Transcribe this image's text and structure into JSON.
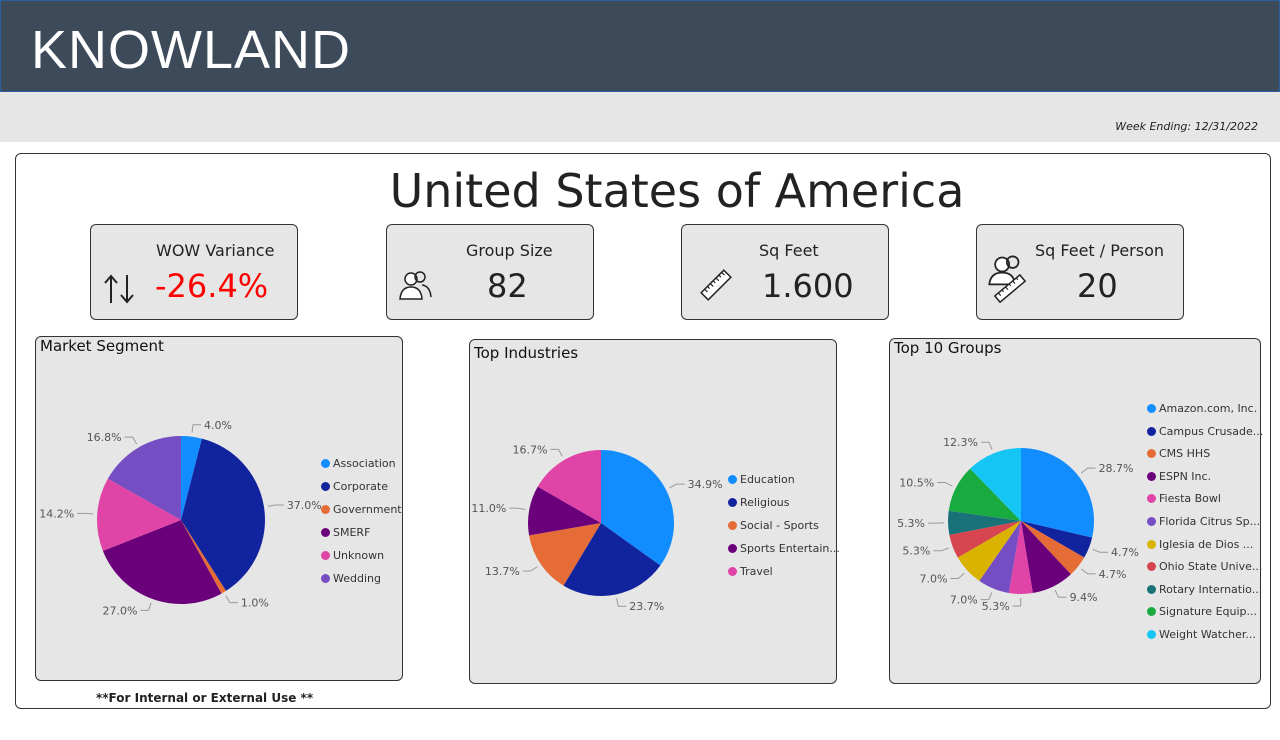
{
  "header": {
    "brand": "KNOWLAND",
    "week_ending": "Week Ending: 12/31/2022"
  },
  "page_title": "United States of America",
  "kpis": {
    "wow": {
      "label": "WOW Variance",
      "value": "-26.4%",
      "icon": "up-down-arrows-icon",
      "color": "#ff0000"
    },
    "group_size": {
      "label": "Group Size",
      "value": "82",
      "icon": "people-icon"
    },
    "sq_feet": {
      "label": "Sq Feet",
      "value": "1.600",
      "icon": "ruler-icon"
    },
    "sq_per_person": {
      "label": "Sq Feet / Person",
      "value": "20",
      "icon": "person-ruler-icon"
    }
  },
  "footer": "**For Internal or External Use **",
  "chart_data": [
    {
      "type": "pie",
      "title": "Market Segment",
      "categories": [
        "Association",
        "Corporate",
        "Government",
        "SMERF",
        "Unknown",
        "Wedding"
      ],
      "values": [
        4.0,
        37.0,
        1.0,
        27.0,
        14.2,
        16.8
      ],
      "labels": [
        "4.0%",
        "37.0%",
        "1.0%",
        "27.0%",
        "14.2%",
        "16.8%"
      ],
      "colors": [
        "#118dff",
        "#12239e",
        "#e66c37",
        "#6b007b",
        "#e044a7",
        "#744ec2"
      ],
      "legend": "right"
    },
    {
      "type": "pie",
      "title": "Top Industries",
      "categories": [
        "Education",
        "Religious",
        "Social - Sports",
        "Sports Entertain...",
        "Travel"
      ],
      "values": [
        34.9,
        23.7,
        13.7,
        11.0,
        16.7
      ],
      "labels": [
        "34.9%",
        "23.7%",
        "13.7%",
        "11.0%",
        "16.7%"
      ],
      "colors": [
        "#118dff",
        "#12239e",
        "#e66c37",
        "#6b007b",
        "#e044a7"
      ],
      "legend": "right"
    },
    {
      "type": "pie",
      "title": "Top 10 Groups",
      "categories": [
        "Amazon.com, Inc.",
        "Campus Crusade...",
        "CMS HHS",
        "ESPN Inc.",
        "Fiesta Bowl",
        "Florida Citrus Sp...",
        "Iglesia de Dios ...",
        "Ohio State Unive...",
        "Rotary Internatio...",
        "Signature Equip...",
        "Weight Watcher..."
      ],
      "values": [
        28.7,
        4.7,
        4.7,
        9.4,
        5.3,
        7.0,
        7.0,
        5.3,
        5.3,
        10.5,
        12.3
      ],
      "labels": [
        "28.7%",
        "4.7%",
        "4.7%",
        "9.4%",
        "5.3%",
        "7.0%",
        "7.0%",
        "5.3%",
        "5.3%",
        "10.5%",
        "12.3%"
      ],
      "colors": [
        "#118dff",
        "#12239e",
        "#e66c37",
        "#6b007b",
        "#e044a7",
        "#744ec2",
        "#d9b300",
        "#d64550",
        "#197278",
        "#1aab40",
        "#15c6f4"
      ],
      "legend": "right"
    }
  ]
}
